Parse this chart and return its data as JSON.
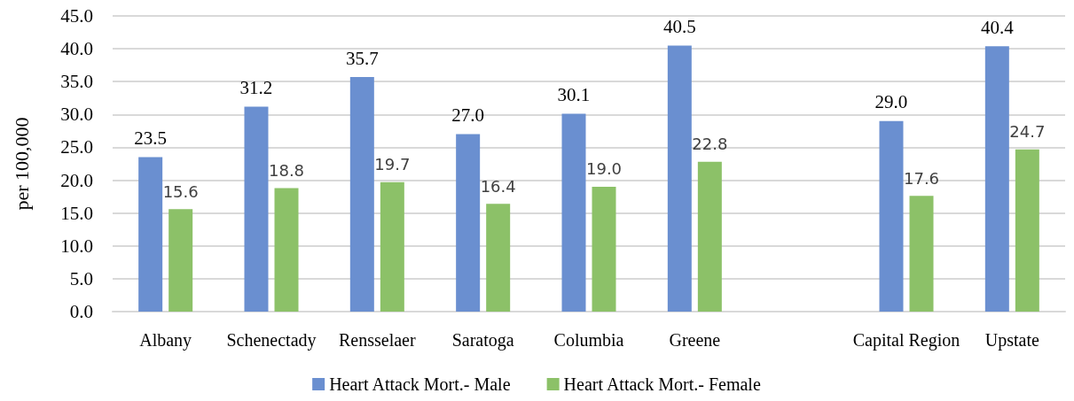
{
  "chart_data": {
    "type": "bar",
    "ylabel": "per 100,000",
    "categories": [
      "Albany",
      "Schenectady",
      "Rensselaer",
      "Saratoga",
      "Columbia",
      "Greene",
      null,
      "Capital Region",
      "Upstate"
    ],
    "series": [
      {
        "name": "Heart Attack Mort.- Male",
        "color": "#6a8fd0",
        "values": [
          23.5,
          31.2,
          35.7,
          27.0,
          30.1,
          40.5,
          null,
          29.0,
          40.4
        ],
        "value_labels": [
          "23.5",
          "31.2",
          "35.7",
          "27.0",
          "30.1",
          "40.5",
          null,
          "29.0",
          "40.4"
        ]
      },
      {
        "name": "Heart Attack Mort.- Female",
        "color": "#8cc168",
        "values": [
          15.6,
          18.8,
          19.7,
          16.4,
          19.0,
          22.8,
          null,
          17.6,
          24.7
        ],
        "value_labels": [
          "15.6",
          "18.8",
          "19.7",
          "16.4",
          "19.0",
          "22.8",
          null,
          "17.6",
          "24.7"
        ]
      }
    ],
    "ylim": [
      0,
      45
    ],
    "yticks": [
      {
        "value": 0,
        "label": "0.0"
      },
      {
        "value": 5,
        "label": "5.0"
      },
      {
        "value": 10,
        "label": "10.0"
      },
      {
        "value": 15,
        "label": "15.0"
      },
      {
        "value": 20,
        "label": "20.0"
      },
      {
        "value": 25,
        "label": "25.0"
      },
      {
        "value": 30,
        "label": "30.0"
      },
      {
        "value": 35,
        "label": "35.0"
      },
      {
        "value": 40,
        "label": "40.0"
      },
      {
        "value": 45,
        "label": "45.0"
      }
    ],
    "grid": "y",
    "legend": "bottom"
  }
}
